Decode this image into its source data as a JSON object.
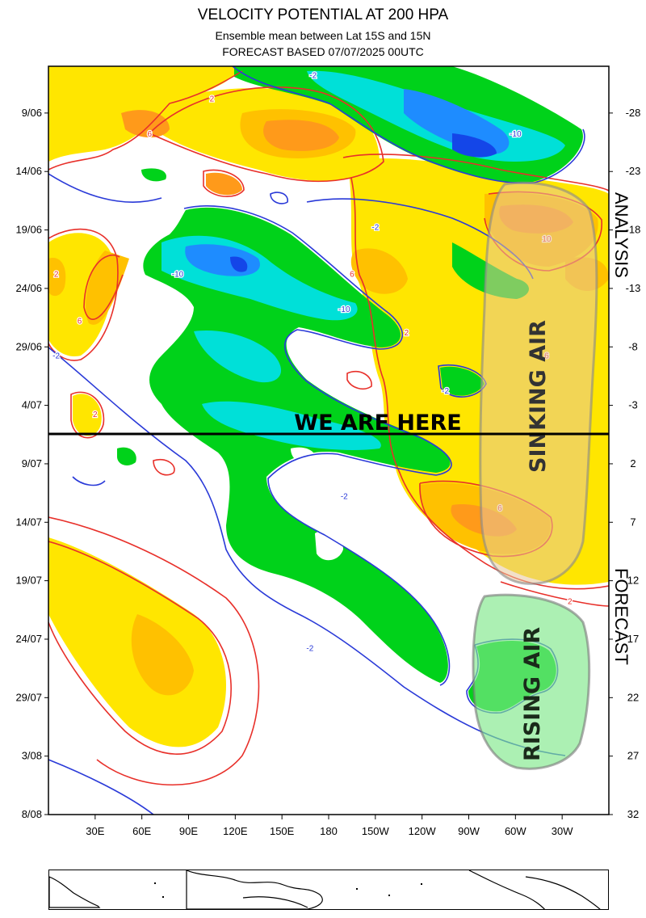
{
  "header": {
    "title": "VELOCITY POTENTIAL AT 200 HPA",
    "subtitle": "Ensemble mean between  Lat 15S and 15N",
    "forecast_line": "FORECAST  BASED 07/07/2025 00UTC"
  },
  "colors": {
    "positive_contour": "#e8302a",
    "negative_contour": "#2a3ad8",
    "fill_pos_1": "#ffe600",
    "fill_pos_2": "#ffc100",
    "fill_pos_3": "#ff9a1a",
    "fill_neg_1": "#00d21a",
    "fill_neg_2": "#00e0d8",
    "fill_neg_3": "#1e8cff",
    "fill_neg_4": "#1446e8",
    "sinking_box_fill": "#e8c79a",
    "rising_box_fill": "#7fe88a",
    "now_line": "#000000"
  },
  "annotations": {
    "now_label": "WE ARE HERE",
    "sinking_label": "SINKING AIR",
    "rising_label": "RISING AIR",
    "analysis_label": "ANALYSIS",
    "forecast_label": "FORECAST"
  },
  "chart_data": {
    "type": "heatmap",
    "title": "VELOCITY POTENTIAL AT 200 HPA",
    "x_ticks": [
      "30E",
      "60E",
      "90E",
      "120E",
      "150E",
      "180",
      "150W",
      "120W",
      "90W",
      "60W",
      "30W"
    ],
    "y_ticks_left": [
      "9/06",
      "14/06",
      "19/06",
      "24/06",
      "29/06",
      "4/07",
      "9/07",
      "14/07",
      "19/07",
      "24/07",
      "29/07",
      "3/08",
      "8/08"
    ],
    "y_ticks_right": [
      "-28",
      "-23",
      "-18",
      "-13",
      "-8",
      "-3",
      "2",
      "7",
      "12",
      "17",
      "22",
      "27",
      "32"
    ],
    "xlim": [
      "0",
      "360"
    ],
    "ylim": [
      "5/06",
      "8/08"
    ],
    "contour_labels": [
      {
        "value": "-2",
        "lon": 170,
        "date": "06/06"
      },
      {
        "value": "-2",
        "lon": 210,
        "date": "19/06"
      },
      {
        "value": "-10",
        "lon": 83,
        "date": "23/06"
      },
      {
        "value": "-10",
        "lon": 190,
        "date": "26/06"
      },
      {
        "value": "-10",
        "lon": 300,
        "date": "11/06"
      },
      {
        "value": "-2",
        "lon": 5,
        "date": "30/06"
      },
      {
        "value": "-2",
        "lon": 255,
        "date": "03/07"
      },
      {
        "value": "-2",
        "lon": 190,
        "date": "12/07"
      },
      {
        "value": "-2",
        "lon": 168,
        "date": "25/07"
      },
      {
        "value": "2",
        "lon": 105,
        "date": "08/06"
      },
      {
        "value": "2",
        "lon": 5,
        "date": "23/06"
      },
      {
        "value": "2",
        "lon": 230,
        "date": "28/06"
      },
      {
        "value": "2",
        "lon": 30,
        "date": "05/07"
      },
      {
        "value": "2",
        "lon": 335,
        "date": "21/07"
      },
      {
        "value": "6",
        "lon": 65,
        "date": "11/06"
      },
      {
        "value": "6",
        "lon": 20,
        "date": "27/06"
      },
      {
        "value": "6",
        "lon": 195,
        "date": "23/06"
      },
      {
        "value": "6",
        "lon": 320,
        "date": "30/06"
      },
      {
        "value": "6",
        "lon": 290,
        "date": "13/07"
      },
      {
        "value": "10",
        "lon": 320,
        "date": "20/06"
      }
    ]
  }
}
